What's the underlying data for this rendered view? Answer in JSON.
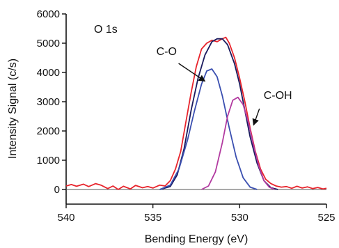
{
  "chart_data": {
    "type": "line",
    "panel_label": "O 1s",
    "xlabel": "Bending Energy (eV)",
    "ylabel": "Intensity Signal (c/s)",
    "xlim": [
      540,
      525
    ],
    "ylim": [
      -500,
      6000
    ],
    "x_reversed": true,
    "x_ticks": [
      540,
      535,
      530,
      525
    ],
    "y_ticks": [
      0,
      1000,
      2000,
      3000,
      4000,
      5000,
      6000
    ],
    "grid": false,
    "legend": "none",
    "series": [
      {
        "color": "#e8242c",
        "x": [
          540.0,
          539.7,
          539.4,
          539.0,
          538.7,
          538.3,
          538.0,
          537.6,
          537.3,
          537.0,
          536.7,
          536.3,
          536.0,
          535.6,
          535.3,
          535.0,
          534.6,
          534.3,
          534.0,
          533.7,
          533.4,
          533.1,
          532.8,
          532.5,
          532.2,
          531.9,
          531.6,
          531.3,
          531.0,
          530.8,
          530.6,
          530.3,
          530.0,
          529.7,
          529.4,
          529.1,
          528.8,
          528.5,
          528.2,
          527.9,
          527.6,
          527.3,
          527.0,
          526.7,
          526.4,
          526.1,
          525.8,
          525.5,
          525.2,
          525.0
        ],
        "y": [
          120,
          170,
          110,
          180,
          100,
          200,
          150,
          30,
          120,
          0,
          110,
          20,
          140,
          60,
          100,
          50,
          150,
          120,
          300,
          700,
          1300,
          2300,
          3300,
          4200,
          4800,
          5000,
          5100,
          5050,
          5150,
          5200,
          5000,
          4500,
          3800,
          3000,
          2100,
          1300,
          700,
          350,
          200,
          120,
          80,
          100,
          40,
          110,
          50,
          90,
          30,
          70,
          20,
          40
        ]
      },
      {
        "color": "#1a1a5e",
        "x": [
          534.6,
          534.0,
          533.6,
          533.2,
          532.8,
          532.4,
          532.0,
          531.6,
          531.3,
          531.0,
          530.7,
          530.3,
          530.0,
          529.7,
          529.4,
          529.0,
          528.6,
          528.2,
          527.8
        ],
        "y": [
          0,
          100,
          500,
          1400,
          2700,
          3800,
          4600,
          5050,
          5150,
          5150,
          4950,
          4300,
          3600,
          2700,
          1800,
          900,
          300,
          60,
          0
        ]
      },
      {
        "color": "#3a4fb0",
        "x": [
          534.6,
          534.0,
          533.5,
          533.0,
          532.6,
          532.2,
          531.9,
          531.6,
          531.3,
          531.0,
          530.6,
          530.2,
          529.8,
          529.4,
          529.0
        ],
        "y": [
          0,
          150,
          700,
          1700,
          2700,
          3600,
          4050,
          4120,
          3850,
          3200,
          2100,
          1100,
          400,
          80,
          0
        ]
      },
      {
        "color": "#b23aa0",
        "x": [
          532.2,
          531.8,
          531.4,
          531.0,
          530.7,
          530.4,
          530.1,
          529.8,
          529.5,
          529.2,
          528.9,
          528.6,
          528.3,
          528.0
        ],
        "y": [
          0,
          120,
          600,
          1600,
          2500,
          3050,
          3150,
          2900,
          2300,
          1500,
          800,
          300,
          80,
          0
        ]
      }
    ],
    "annotations": [
      {
        "text": "C-O",
        "arrow_to": {
          "x": 532.0,
          "y": 3700
        },
        "label_at": {
          "x": 534.0,
          "y": 4500
        }
      },
      {
        "text": "C-OH",
        "arrow_to": {
          "x": 529.2,
          "y": 2200
        },
        "label_at": {
          "x": 528.3,
          "y": 3000
        }
      }
    ]
  }
}
